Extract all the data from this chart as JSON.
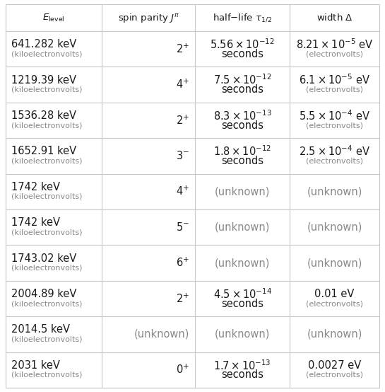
{
  "headers": [
    "$E_{\\mathrm{level}}$",
    "spin parity $J^{\\pi}$",
    "half–life $\\tau_{1/2}$",
    "width Δ"
  ],
  "rows": [
    {
      "col0_line1": "641.282 keV",
      "col0_line2": "(kiloelectronvolts)",
      "col1": "2$^{+}$",
      "col2_line1": "$5.56\\times10^{-12}$",
      "col2_line2": "seconds",
      "col3_line1": "$8.21\\times10^{-5}$ eV",
      "col3_line2": "(electronvolts)",
      "two_line": true
    },
    {
      "col0_line1": "1219.39 keV",
      "col0_line2": "(kiloelectronvolts)",
      "col1": "4$^{+}$",
      "col2_line1": "$7.5\\times10^{-12}$",
      "col2_line2": "seconds",
      "col3_line1": "$6.1\\times10^{-5}$ eV",
      "col3_line2": "(electronvolts)",
      "two_line": true
    },
    {
      "col0_line1": "1536.28 keV",
      "col0_line2": "(kiloelectronvolts)",
      "col1": "2$^{+}$",
      "col2_line1": "$8.3\\times10^{-13}$",
      "col2_line2": "seconds",
      "col3_line1": "$5.5\\times10^{-4}$ eV",
      "col3_line2": "(electronvolts)",
      "two_line": true
    },
    {
      "col0_line1": "1652.91 keV",
      "col0_line2": "(kiloelectronvolts)",
      "col1": "3$^{-}$",
      "col2_line1": "$1.8\\times10^{-12}$",
      "col2_line2": "seconds",
      "col3_line1": "$2.5\\times10^{-4}$ eV",
      "col3_line2": "(electronvolts)",
      "two_line": true
    },
    {
      "col0_line1": "1742 keV",
      "col0_line2": "(kiloelectronvolts)",
      "col1": "4$^{+}$",
      "col2_line1": "(unknown)",
      "col2_line2": "",
      "col3_line1": "(unknown)",
      "col3_line2": "",
      "two_line": false
    },
    {
      "col0_line1": "1742 keV",
      "col0_line2": "(kiloelectronvolts)",
      "col1": "5$^{-}$",
      "col2_line1": "(unknown)",
      "col2_line2": "",
      "col3_line1": "(unknown)",
      "col3_line2": "",
      "two_line": false
    },
    {
      "col0_line1": "1743.02 keV",
      "col0_line2": "(kiloelectronvolts)",
      "col1": "6$^{+}$",
      "col2_line1": "(unknown)",
      "col2_line2": "",
      "col3_line1": "(unknown)",
      "col3_line2": "",
      "two_line": false
    },
    {
      "col0_line1": "2004.89 keV",
      "col0_line2": "(kiloelectronvolts)",
      "col1": "2$^{+}$",
      "col2_line1": "$4.5\\times10^{-14}$",
      "col2_line2": "seconds",
      "col3_line1": "0.01 eV",
      "col3_line2": "(electronvolts)",
      "two_line": true
    },
    {
      "col0_line1": "2014.5 keV",
      "col0_line2": "(kiloelectronvolts)",
      "col1": "(unknown)",
      "col2_line1": "(unknown)",
      "col2_line2": "",
      "col3_line1": "(unknown)",
      "col3_line2": "",
      "two_line": false
    },
    {
      "col0_line1": "2031 keV",
      "col0_line2": "(kiloelectronvolts)",
      "col1": "0$^{+}$",
      "col2_line1": "$1.7\\times10^{-13}$",
      "col2_line2": "seconds",
      "col3_line1": "0.0027 eV",
      "col3_line2": "(electronvolts)",
      "two_line": true
    }
  ],
  "bg_color": "#ffffff",
  "line_color": "#c8c8c8",
  "text_color": "#1a1a1a",
  "gray_color": "#888888",
  "header_fontsize": 9.5,
  "main_fontsize": 10.5,
  "small_fontsize": 8.0
}
